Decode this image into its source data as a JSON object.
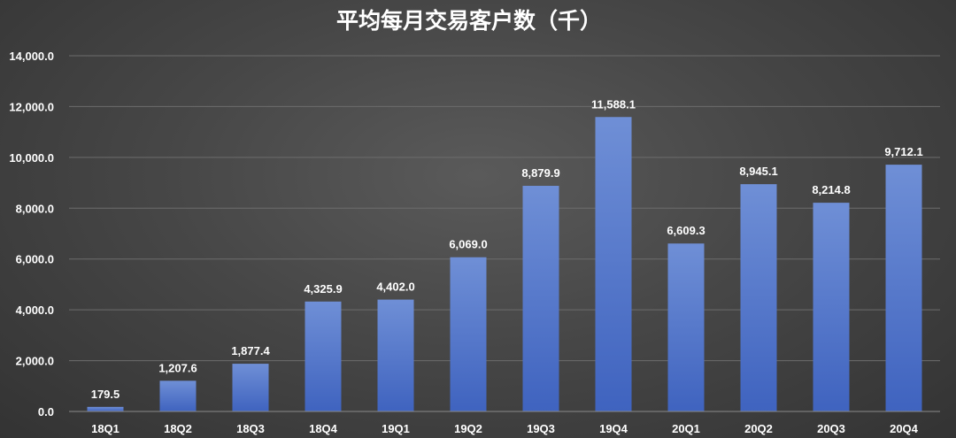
{
  "chart_data": {
    "type": "bar",
    "title": "平均每月交易客户数（千）",
    "categories": [
      "18Q1",
      "18Q2",
      "18Q3",
      "18Q4",
      "19Q1",
      "19Q2",
      "19Q3",
      "19Q4",
      "20Q1",
      "20Q2",
      "20Q3",
      "20Q4"
    ],
    "values": [
      179.5,
      1207.6,
      1877.4,
      4325.9,
      4402.0,
      6069.0,
      8879.9,
      11588.1,
      6609.3,
      8945.1,
      8214.8,
      9712.1
    ],
    "data_labels": [
      "179.5",
      "1,207.6",
      "1,877.4",
      "4,325.9",
      "4,402.0",
      "6,069.0",
      "8,879.9",
      "11,588.1",
      "6,609.3",
      "8,945.1",
      "8,214.8",
      "9,712.1"
    ],
    "ylim": [
      0,
      14000
    ],
    "yticks": [
      0,
      2000,
      4000,
      6000,
      8000,
      10000,
      12000,
      14000
    ],
    "ytick_labels": [
      "0.0",
      "2,000.0",
      "4,000.0",
      "6,000.0",
      "8,000.0",
      "10,000.0",
      "12,000.0",
      "14,000.0"
    ],
    "grid": true,
    "legend": "none",
    "colors": {
      "bar_top": "#6f8fd6",
      "bar_bottom": "#3f63bf",
      "background": "#474747",
      "text": "#ffffff"
    }
  }
}
